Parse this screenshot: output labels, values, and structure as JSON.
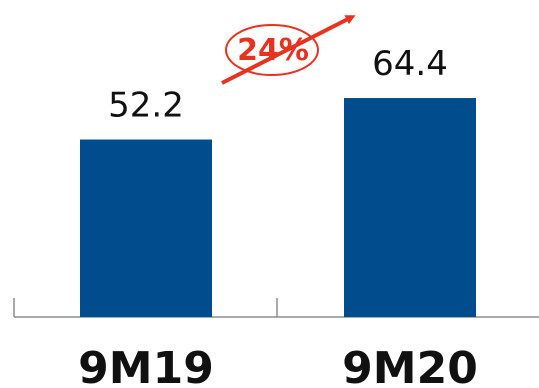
{
  "chart_data": {
    "type": "bar",
    "title": "",
    "xlabel": "",
    "ylabel": "",
    "categories": [
      "9M19",
      "9M20"
    ],
    "values": [
      52.2,
      64.4
    ],
    "value_labels": [
      "52.2",
      "64.4"
    ],
    "ylim": [
      0,
      100
    ],
    "grid": false,
    "bar_color": "#004C8C",
    "annotation": {
      "text": "24%",
      "color": "#E8321E"
    }
  }
}
